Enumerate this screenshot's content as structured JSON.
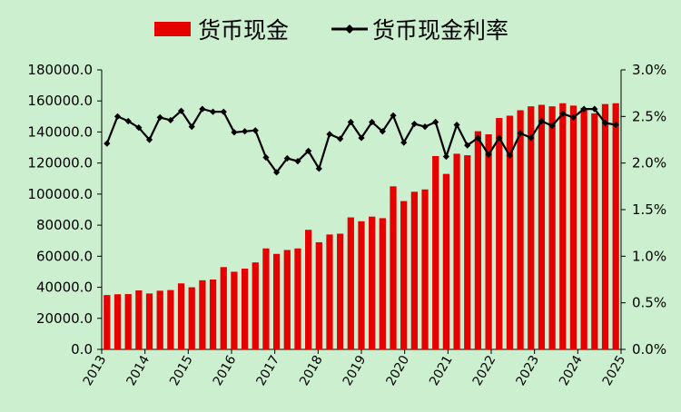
{
  "chart_data": {
    "type": "bar+line",
    "legend_position": "top-center",
    "legend": [
      "货币现金",
      "货币现金利率"
    ],
    "colors": {
      "bar": "#e60000",
      "line": "#000000",
      "background": "#ccefd0"
    },
    "x_tick_labels": [
      "2013",
      "2014",
      "2015",
      "2016",
      "2017",
      "2018",
      "2019",
      "2020",
      "2021",
      "2022",
      "2023",
      "2024",
      "2025"
    ],
    "y_left": {
      "min": 0,
      "max": 180000,
      "step": 20000,
      "tick_labels": [
        "0.0",
        "20000.0",
        "40000.0",
        "60000.0",
        "80000.0",
        "100000.0",
        "120000.0",
        "140000.0",
        "160000.0",
        "180000.0"
      ]
    },
    "y_right": {
      "min": 0,
      "max": 3.0,
      "step": 0.5,
      "tick_labels": [
        "0.0%",
        "0.5%",
        "1.0%",
        "1.5%",
        "2.0%",
        "2.5%",
        "3.0%"
      ]
    },
    "series": [
      {
        "name": "货币现金",
        "type": "bar",
        "axis": "left",
        "values": [
          35000,
          35500,
          35600,
          38000,
          36000,
          37800,
          38200,
          42500,
          40000,
          44500,
          45000,
          53000,
          50000,
          52000,
          56000,
          65000,
          61500,
          64000,
          65000,
          77000,
          69000,
          74000,
          74500,
          85000,
          82500,
          85500,
          84500,
          105000,
          95500,
          101500,
          103000,
          124500,
          113000,
          126000,
          125000,
          140500,
          138500,
          149000,
          150500,
          154000,
          156500,
          157500,
          156500,
          158500,
          157000,
          155500,
          152000,
          158000,
          158500
        ]
      },
      {
        "name": "货币现金利率",
        "type": "line",
        "axis": "right",
        "values": [
          2.21,
          2.5,
          2.45,
          2.38,
          2.25,
          2.49,
          2.46,
          2.56,
          2.39,
          2.58,
          2.55,
          2.55,
          2.33,
          2.34,
          2.35,
          2.06,
          1.9,
          2.05,
          2.02,
          2.13,
          1.94,
          2.31,
          2.26,
          2.44,
          2.27,
          2.44,
          2.34,
          2.51,
          2.22,
          2.42,
          2.39,
          2.44,
          2.07,
          2.41,
          2.19,
          2.27,
          2.09,
          2.27,
          2.08,
          2.32,
          2.27,
          2.45,
          2.4,
          2.53,
          2.49,
          2.58,
          2.58,
          2.43,
          2.41
        ]
      }
    ]
  }
}
